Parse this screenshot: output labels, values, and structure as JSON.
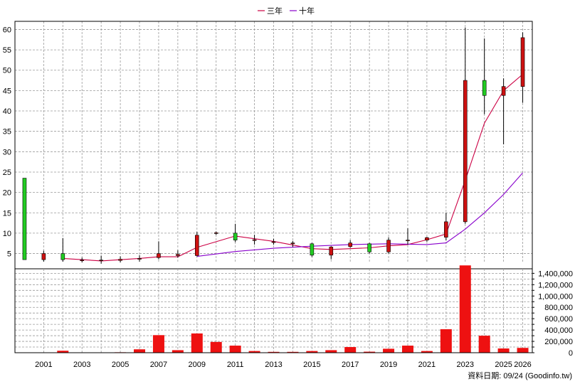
{
  "chart_data": {
    "type": "candlestick",
    "legend": {
      "position": "top-center",
      "items": [
        {
          "label": "三年",
          "color": "#cc0044"
        },
        {
          "label": "十年",
          "color": "#8800cc"
        }
      ]
    },
    "colors": {
      "up_candle": "#cc1111",
      "down_candle": "#22cc22",
      "wick": "#000000",
      "volume_bar": "#ee1111",
      "grid": "#999999"
    },
    "grid": true,
    "price_axis": {
      "position": "left",
      "range": [
        3,
        62
      ],
      "ticks": [
        5,
        10,
        15,
        20,
        25,
        30,
        35,
        40,
        45,
        50,
        55,
        60
      ]
    },
    "volume_axis": {
      "position": "right",
      "range": [
        0,
        1480000
      ],
      "ticks": [
        "0",
        "200,000",
        "400,000",
        "600,000",
        "800,000",
        "1,000,000",
        "1,200,000",
        "1,400,000"
      ]
    },
    "x_axis": {
      "range": [
        1999.5,
        2026.5
      ],
      "tick_labels": [
        "2001",
        "2003",
        "2005",
        "2007",
        "2009",
        "2011",
        "2013",
        "2015",
        "2017",
        "2019",
        "2021",
        "2023",
        "2025",
        "2026"
      ]
    },
    "candles": [
      {
        "year": 2000,
        "open": 23.5,
        "close": 3.5,
        "high": 23.5,
        "low": 3.5
      },
      {
        "year": 2001,
        "open": 3.5,
        "close": 5.0,
        "high": 5.7,
        "low": 3.0
      },
      {
        "year": 2002,
        "open": 5.0,
        "close": 3.5,
        "high": 8.8,
        "low": 3.0
      },
      {
        "year": 2003,
        "open": 3.3,
        "close": 3.4,
        "high": 4.0,
        "low": 2.8
      },
      {
        "year": 2004,
        "open": 3.3,
        "close": 3.4,
        "high": 4.5,
        "low": 2.5
      },
      {
        "year": 2005,
        "open": 3.3,
        "close": 3.6,
        "high": 4.3,
        "low": 2.8
      },
      {
        "year": 2006,
        "open": 3.6,
        "close": 3.8,
        "high": 4.6,
        "low": 3.0
      },
      {
        "year": 2007,
        "open": 4.0,
        "close": 5.0,
        "high": 8.0,
        "low": 3.6
      },
      {
        "year": 2008,
        "open": 4.5,
        "close": 4.8,
        "high": 5.8,
        "low": 4.0
      },
      {
        "year": 2009,
        "open": 4.5,
        "close": 9.5,
        "high": 10.3,
        "low": 4.3
      },
      {
        "year": 2010,
        "open": 10.0,
        "close": 10.1,
        "high": 10.4,
        "low": 9.6
      },
      {
        "year": 2011,
        "open": 10.0,
        "close": 8.3,
        "high": 12.3,
        "low": 7.8
      },
      {
        "year": 2012,
        "open": 8.2,
        "close": 8.4,
        "high": 9.6,
        "low": 7.2
      },
      {
        "year": 2013,
        "open": 7.7,
        "close": 7.9,
        "high": 8.6,
        "low": 7.2
      },
      {
        "year": 2014,
        "open": 7.4,
        "close": 7.6,
        "high": 8.1,
        "low": 6.6
      },
      {
        "year": 2015,
        "open": 7.4,
        "close": 4.6,
        "high": 7.6,
        "low": 4.2
      },
      {
        "year": 2016,
        "open": 4.6,
        "close": 6.6,
        "high": 6.8,
        "low": 3.6
      },
      {
        "year": 2017,
        "open": 6.7,
        "close": 7.6,
        "high": 8.3,
        "low": 6.4
      },
      {
        "year": 2018,
        "open": 7.4,
        "close": 5.4,
        "high": 7.6,
        "low": 5.0
      },
      {
        "year": 2019,
        "open": 5.4,
        "close": 8.3,
        "high": 9.0,
        "low": 5.0
      },
      {
        "year": 2020,
        "open": 8.2,
        "close": 8.3,
        "high": 11.2,
        "low": 7.2
      },
      {
        "year": 2021,
        "open": 8.3,
        "close": 8.9,
        "high": 9.1,
        "low": 7.9
      },
      {
        "year": 2022,
        "open": 9.0,
        "close": 12.8,
        "high": 15.0,
        "low": 8.2
      },
      {
        "year": 2023,
        "open": 12.8,
        "close": 47.5,
        "high": 60.5,
        "low": 12.3
      },
      {
        "year": 2024,
        "open": 47.5,
        "close": 43.8,
        "high": 57.8,
        "low": 39.2
      },
      {
        "year": 2025,
        "open": 43.8,
        "close": 46.0,
        "high": 48.0,
        "low": 31.8
      },
      {
        "year": 2026,
        "open": 46.0,
        "close": 58.0,
        "high": 59.3,
        "low": 42.0
      }
    ],
    "series": [
      {
        "label_ref": 0,
        "x": [
          2002,
          2004,
          2006,
          2007,
          2008,
          2009,
          2011,
          2013,
          2015,
          2016,
          2017,
          2018,
          2019,
          2020,
          2021,
          2022,
          2023,
          2024,
          2025,
          2026
        ],
        "y": [
          3.8,
          3.2,
          3.8,
          4.2,
          4.2,
          6.5,
          9.3,
          8.0,
          6.2,
          6.0,
          6.2,
          6.4,
          6.9,
          7.2,
          8.4,
          9.8,
          23.0,
          37.0,
          45.0,
          49.0
        ]
      },
      {
        "label_ref": 1,
        "x": [
          2009,
          2011,
          2013,
          2015,
          2017,
          2019,
          2021,
          2022,
          2023,
          2024,
          2025,
          2026
        ],
        "y": [
          4.3,
          5.5,
          6.3,
          6.8,
          7.2,
          7.4,
          7.2,
          7.6,
          11.0,
          15.0,
          19.5,
          24.8
        ]
      }
    ],
    "volume": [
      {
        "year": 2000,
        "value": 3000
      },
      {
        "year": 2001,
        "value": 2000
      },
      {
        "year": 2002,
        "value": 35000
      },
      {
        "year": 2003,
        "value": 5000
      },
      {
        "year": 2004,
        "value": 4000
      },
      {
        "year": 2005,
        "value": 8000
      },
      {
        "year": 2006,
        "value": 60000
      },
      {
        "year": 2007,
        "value": 310000
      },
      {
        "year": 2008,
        "value": 45000
      },
      {
        "year": 2009,
        "value": 340000
      },
      {
        "year": 2010,
        "value": 190000
      },
      {
        "year": 2011,
        "value": 125000
      },
      {
        "year": 2012,
        "value": 30000
      },
      {
        "year": 2013,
        "value": 15000
      },
      {
        "year": 2014,
        "value": 15000
      },
      {
        "year": 2015,
        "value": 30000
      },
      {
        "year": 2016,
        "value": 45000
      },
      {
        "year": 2017,
        "value": 100000
      },
      {
        "year": 2018,
        "value": 18000
      },
      {
        "year": 2019,
        "value": 70000
      },
      {
        "year": 2020,
        "value": 125000
      },
      {
        "year": 2021,
        "value": 30000
      },
      {
        "year": 2022,
        "value": 415000
      },
      {
        "year": 2023,
        "value": 1540000
      },
      {
        "year": 2024,
        "value": 300000
      },
      {
        "year": 2025,
        "value": 75000
      },
      {
        "year": 2026,
        "value": 85000
      }
    ]
  },
  "footer": {
    "note": "資料日期: 09/24  (Goodinfo.tw)"
  }
}
